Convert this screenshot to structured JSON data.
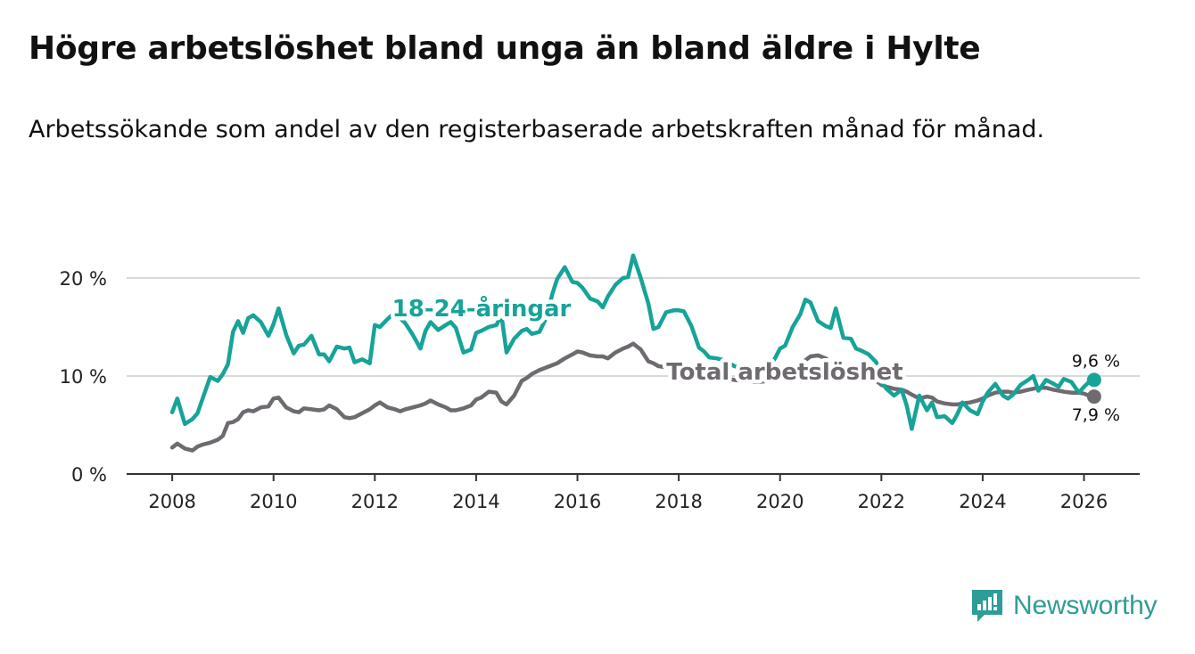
{
  "title": "Högre arbetslöshet bland unga än bland äldre i Hylte",
  "subtitle": "Arbetssökande som andel av den registerbaserade arbetskraften månad för månad.",
  "logo": {
    "text": "Newsworthy",
    "icon": "newsworthy-logo-icon"
  },
  "colors": {
    "young": "#17a398",
    "total": "#6e6a70",
    "grid": "#d9d9d9",
    "axis": "#333333"
  },
  "chart_data": {
    "type": "line",
    "title": "Högre arbetslöshet bland unga än bland äldre i Hylte",
    "xlabel": "",
    "ylabel": "",
    "xlim": [
      2007.1,
      2027.1
    ],
    "ylim": [
      0,
      22
    ],
    "x_ticks": [
      2008,
      2010,
      2012,
      2014,
      2016,
      2018,
      2020,
      2022,
      2024,
      2026
    ],
    "x_tick_labels": [
      "2008",
      "2010",
      "2012",
      "2014",
      "2016",
      "2018",
      "2020",
      "2022",
      "2024",
      "2026"
    ],
    "y_ticks": [
      0,
      10,
      20
    ],
    "y_tick_labels": [
      "0 %",
      "10 %",
      "20 %"
    ],
    "grid": true,
    "series": [
      {
        "name": "18-24-åringar",
        "label": "18-24-åringar",
        "end_label": "9,6 %",
        "x": [
          2008.0,
          2008.1,
          2008.25,
          2008.4,
          2008.5,
          2008.6,
          2008.75,
          2008.9,
          2009.0,
          2009.1,
          2009.2,
          2009.3,
          2009.4,
          2009.5,
          2009.6,
          2009.75,
          2009.9,
          2010.0,
          2010.1,
          2010.25,
          2010.4,
          2010.5,
          2010.6,
          2010.75,
          2010.9,
          2011.0,
          2011.1,
          2011.25,
          2011.4,
          2011.5,
          2011.6,
          2011.75,
          2011.9,
          2012.0,
          2012.1,
          2012.25,
          2012.4,
          2012.5,
          2012.6,
          2012.75,
          2012.9,
          2013.0,
          2013.1,
          2013.25,
          2013.4,
          2013.5,
          2013.6,
          2013.75,
          2013.9,
          2014.0,
          2014.1,
          2014.25,
          2014.4,
          2014.5,
          2014.6,
          2014.75,
          2014.9,
          2015.0,
          2015.1,
          2015.25,
          2015.4,
          2015.5,
          2015.6,
          2015.75,
          2015.9,
          2016.0,
          2016.1,
          2016.25,
          2016.4,
          2016.5,
          2016.6,
          2016.75,
          2016.9,
          2017.0,
          2017.1,
          2017.25,
          2017.4,
          2017.5,
          2017.6,
          2017.75,
          2017.9,
          2018.0,
          2018.1,
          2018.25,
          2018.4,
          2018.5,
          2018.6,
          2018.75,
          2018.9,
          2019.0,
          2019.1,
          2019.25,
          2019.4,
          2019.5,
          2019.6,
          2019.75,
          2019.9,
          2020.0,
          2020.1,
          2020.25,
          2020.4,
          2020.5,
          2020.6,
          2020.75,
          2020.9,
          2021.0,
          2021.1,
          2021.25,
          2021.4,
          2021.5,
          2021.6,
          2021.75,
          2021.9,
          2022.0,
          2022.1,
          2022.25,
          2022.4,
          2022.5,
          2022.6,
          2022.75,
          2022.9,
          2023.0,
          2023.1,
          2023.25,
          2023.4,
          2023.5,
          2023.6,
          2023.75,
          2023.9,
          2024.0,
          2024.1,
          2024.25,
          2024.4,
          2024.5,
          2024.6,
          2024.75,
          2024.9,
          2025.0,
          2025.1,
          2025.25,
          2025.4,
          2025.5,
          2025.6,
          2025.75,
          2025.9,
          2026.0,
          2026.1,
          2026.2
        ],
        "values": [
          6.3,
          7.7,
          5.1,
          5.6,
          6.2,
          7.7,
          9.9,
          9.5,
          10.2,
          11.2,
          14.5,
          15.6,
          14.4,
          15.9,
          16.2,
          15.5,
          14.1,
          15.3,
          16.9,
          14.2,
          12.3,
          13.1,
          13.2,
          14.1,
          12.2,
          12.2,
          11.5,
          13.0,
          12.8,
          12.9,
          11.4,
          11.7,
          11.3,
          15.2,
          15.0,
          15.8,
          16.5,
          15.9,
          15.4,
          14.2,
          12.8,
          14.6,
          15.5,
          14.7,
          15.2,
          15.5,
          14.9,
          12.4,
          12.7,
          14.4,
          14.6,
          15.0,
          15.2,
          16.2,
          12.4,
          13.8,
          14.6,
          14.8,
          14.3,
          14.5,
          16.1,
          18.3,
          19.9,
          21.1,
          19.6,
          19.5,
          19.0,
          17.9,
          17.6,
          17.0,
          18.1,
          19.3,
          20.0,
          20.1,
          22.3,
          20.0,
          17.4,
          14.8,
          15.0,
          16.5,
          16.7,
          16.7,
          16.6,
          15.1,
          12.9,
          12.5,
          11.9,
          11.8,
          11.6,
          11.3,
          11.0,
          10.8,
          10.5,
          10.4,
          10.2,
          10.6,
          11.8,
          12.8,
          13.1,
          15.0,
          16.3,
          17.8,
          17.5,
          15.6,
          15.1,
          14.9,
          16.9,
          13.9,
          13.8,
          12.8,
          12.6,
          12.2,
          11.4,
          9.4,
          8.7,
          8.0,
          8.6,
          7.0,
          4.6,
          8.0,
          6.5,
          7.3,
          5.8,
          5.9,
          5.2,
          6.1,
          7.3,
          6.5,
          6.1,
          7.4,
          8.3,
          9.2,
          8.0,
          7.7,
          8.1,
          9.1,
          9.6,
          10.0,
          8.5,
          9.6,
          9.2,
          8.9,
          9.7,
          9.4,
          8.3,
          8.9,
          9.4,
          9.6
        ]
      },
      {
        "name": "Total arbetslöshet",
        "label": "Total arbetslöshet",
        "end_label": "7,9 %",
        "x": [
          2008.0,
          2008.1,
          2008.25,
          2008.4,
          2008.5,
          2008.6,
          2008.75,
          2008.9,
          2009.0,
          2009.1,
          2009.2,
          2009.3,
          2009.4,
          2009.5,
          2009.6,
          2009.75,
          2009.9,
          2010.0,
          2010.1,
          2010.25,
          2010.4,
          2010.5,
          2010.6,
          2010.75,
          2010.9,
          2011.0,
          2011.1,
          2011.25,
          2011.4,
          2011.5,
          2011.6,
          2011.75,
          2011.9,
          2012.0,
          2012.1,
          2012.25,
          2012.4,
          2012.5,
          2012.6,
          2012.75,
          2012.9,
          2013.0,
          2013.1,
          2013.25,
          2013.4,
          2013.5,
          2013.6,
          2013.75,
          2013.9,
          2014.0,
          2014.1,
          2014.25,
          2014.4,
          2014.5,
          2014.6,
          2014.75,
          2014.9,
          2015.0,
          2015.1,
          2015.25,
          2015.4,
          2015.5,
          2015.6,
          2015.75,
          2015.9,
          2016.0,
          2016.1,
          2016.25,
          2016.4,
          2016.5,
          2016.6,
          2016.75,
          2016.9,
          2017.0,
          2017.1,
          2017.25,
          2017.4,
          2017.5,
          2017.6,
          2017.75,
          2017.9,
          2018.0,
          2018.1,
          2018.25,
          2018.4,
          2018.5,
          2018.6,
          2018.75,
          2018.9,
          2019.0,
          2019.1,
          2019.25,
          2019.4,
          2019.5,
          2019.6,
          2019.75,
          2019.9,
          2020.0,
          2020.1,
          2020.25,
          2020.4,
          2020.5,
          2020.6,
          2020.75,
          2020.9,
          2021.0,
          2021.1,
          2021.25,
          2021.4,
          2021.5,
          2021.6,
          2021.75,
          2021.9,
          2022.0,
          2022.1,
          2022.25,
          2022.4,
          2022.5,
          2022.6,
          2022.75,
          2022.9,
          2023.0,
          2023.1,
          2023.25,
          2023.4,
          2023.5,
          2023.6,
          2023.75,
          2023.9,
          2024.0,
          2024.1,
          2024.25,
          2024.4,
          2024.5,
          2024.6,
          2024.75,
          2024.9,
          2025.0,
          2025.1,
          2025.25,
          2025.4,
          2025.5,
          2025.6,
          2025.75,
          2025.9,
          2026.0,
          2026.1,
          2026.2
        ],
        "values": [
          2.7,
          3.1,
          2.6,
          2.4,
          2.8,
          3.0,
          3.2,
          3.5,
          3.9,
          5.2,
          5.3,
          5.6,
          6.3,
          6.5,
          6.4,
          6.8,
          6.9,
          7.7,
          7.8,
          6.8,
          6.4,
          6.3,
          6.7,
          6.6,
          6.5,
          6.6,
          7.0,
          6.6,
          5.8,
          5.7,
          5.8,
          6.2,
          6.6,
          7.0,
          7.3,
          6.8,
          6.6,
          6.4,
          6.6,
          6.8,
          7.0,
          7.2,
          7.5,
          7.1,
          6.8,
          6.5,
          6.5,
          6.7,
          7.0,
          7.6,
          7.8,
          8.4,
          8.3,
          7.4,
          7.1,
          8.0,
          9.5,
          9.8,
          10.2,
          10.6,
          10.9,
          11.1,
          11.3,
          11.8,
          12.2,
          12.5,
          12.4,
          12.1,
          12.0,
          12.0,
          11.8,
          12.4,
          12.8,
          13.0,
          13.3,
          12.7,
          11.5,
          11.3,
          11.0,
          10.9,
          10.8,
          10.6,
          10.6,
          10.5,
          10.3,
          10.2,
          10.1,
          9.9,
          9.8,
          9.7,
          9.6,
          9.5,
          9.5,
          9.4,
          9.4,
          9.5,
          9.8,
          10.2,
          10.5,
          10.8,
          11.2,
          11.6,
          12.0,
          12.1,
          11.8,
          11.4,
          11.0,
          10.7,
          10.5,
          10.3,
          10.1,
          9.8,
          9.5,
          9.1,
          8.9,
          8.7,
          8.6,
          8.4,
          8.1,
          7.7,
          7.9,
          7.8,
          7.4,
          7.2,
          7.1,
          7.1,
          7.2,
          7.3,
          7.5,
          7.7,
          8.0,
          8.3,
          8.4,
          8.4,
          8.3,
          8.4,
          8.6,
          8.7,
          8.8,
          8.8,
          8.6,
          8.5,
          8.4,
          8.3,
          8.3,
          8.2,
          8.0,
          7.9
        ]
      }
    ]
  }
}
